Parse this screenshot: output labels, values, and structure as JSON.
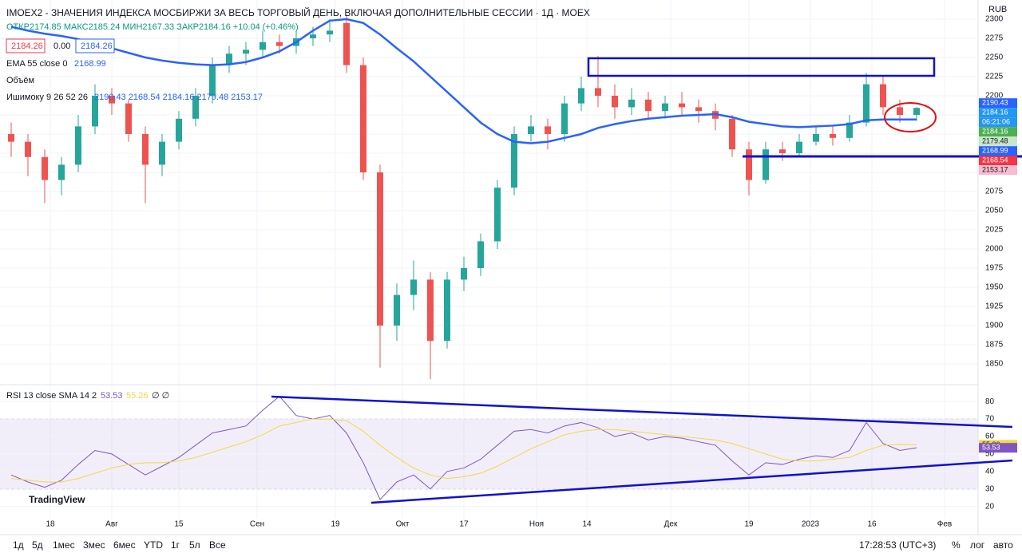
{
  "header": {
    "title": "IMOEX2 - ЗНАЧЕНИЯ ИНДЕКСА МОСБИРЖИ ЗА ВЕСЬ ТОРГОВЫЙ ДЕНЬ, ВКЛЮЧАЯ ДОПОЛНИТЕЛЬНЫЕ СЕССИИ · 1Д · MOEX",
    "ohlc": "ОТКР2174.85 МАКС2185.24 МИН2167.33 ЗАКР2184.16 +10.04 (+0.46%)",
    "bid": "2184.26",
    "spread": "0.00",
    "ask": "2184.26",
    "ema_legend": "EMA 55 close 0",
    "ema_value": "2168.99",
    "volume_legend": "Объём",
    "ichimoku_legend": "Ишимоку 9 26 52 26",
    "ichimoku_values": "2190.43 2168.54 2184.16 2179.48 2153.17",
    "currency": "RUB",
    "logo": "TradingView"
  },
  "toolbar": {
    "ranges": [
      "1д",
      "5д",
      "1мес",
      "3мес",
      "6мес",
      "YTD",
      "1г",
      "5л",
      "Все"
    ],
    "clock": "17:28:53 (UTC+3)",
    "percent": "%",
    "log": "лог",
    "auto": "авто"
  },
  "chart_data": [
    {
      "type": "candlestick",
      "up_color": "#26a69a",
      "down_color": "#ef5350",
      "x": [
        2,
        5,
        8,
        11,
        14,
        17,
        20,
        23,
        26,
        29,
        32,
        35,
        38,
        41,
        44,
        47,
        50,
        53,
        56,
        59,
        62,
        65,
        68,
        71,
        74,
        77,
        80,
        83,
        86,
        89,
        92,
        95,
        98,
        101,
        104,
        107,
        110,
        113,
        116,
        119,
        122,
        125,
        128,
        131,
        134,
        137,
        140,
        143,
        146,
        149,
        152,
        155,
        158,
        161,
        164
      ],
      "open": [
        2150,
        2140,
        2120,
        2090,
        2110,
        2160,
        2200,
        2190,
        2150,
        2110,
        2140,
        2170,
        2200,
        2240,
        2255,
        2260,
        2270,
        2265,
        2275,
        2280,
        2295,
        2240,
        2100,
        1900,
        1940,
        1960,
        1880,
        1960,
        1975,
        2010,
        2080,
        2150,
        2160,
        2150,
        2190,
        2210,
        2200,
        2185,
        2195,
        2180,
        2190,
        2185,
        2180,
        2170,
        2130,
        2090,
        2130,
        2125,
        2140,
        2150,
        2145,
        2165,
        2215,
        2185,
        2175
      ],
      "high": [
        2165,
        2150,
        2130,
        2120,
        2175,
        2215,
        2210,
        2195,
        2160,
        2150,
        2180,
        2210,
        2250,
        2265,
        2270,
        2285,
        2280,
        2285,
        2290,
        2300,
        2305,
        2250,
        2110,
        1955,
        1985,
        1970,
        1970,
        1990,
        2020,
        2090,
        2160,
        2175,
        2170,
        2200,
        2225,
        2252,
        2215,
        2210,
        2205,
        2200,
        2205,
        2195,
        2190,
        2175,
        2140,
        2140,
        2140,
        2150,
        2160,
        2160,
        2175,
        2230,
        2225,
        2195,
        2185.24
      ],
      "low": [
        2120,
        2095,
        2060,
        2070,
        2100,
        2150,
        2175,
        2140,
        2060,
        2095,
        2130,
        2160,
        2190,
        2230,
        2240,
        2250,
        2255,
        2255,
        2265,
        2270,
        2230,
        2090,
        1845,
        1880,
        1920,
        1830,
        1870,
        1945,
        1965,
        2000,
        2070,
        2140,
        2130,
        2140,
        2180,
        2185,
        2170,
        2175,
        2170,
        2170,
        2175,
        2165,
        2155,
        2120,
        2070,
        2085,
        2115,
        2120,
        2135,
        2135,
        2140,
        2160,
        2175,
        2165,
        2167.33
      ],
      "close": [
        2140,
        2120,
        2090,
        2110,
        2160,
        2200,
        2190,
        2150,
        2110,
        2140,
        2170,
        2200,
        2240,
        2255,
        2260,
        2270,
        2265,
        2275,
        2280,
        2285,
        2240,
        2100,
        1900,
        1940,
        1960,
        1880,
        1960,
        1975,
        2010,
        2080,
        2150,
        2160,
        2150,
        2190,
        2210,
        2200,
        2185,
        2195,
        2180,
        2190,
        2185,
        2180,
        2170,
        2130,
        2090,
        2130,
        2125,
        2140,
        2150,
        2145,
        2165,
        2215,
        2185,
        2175,
        2184.16
      ],
      "series": [
        {
          "name": "EMA 55",
          "color": "#2962ff",
          "values": [
            2290,
            2285,
            2281,
            2278,
            2274,
            2268,
            2262,
            2256,
            2250,
            2246,
            2243,
            2241,
            2240,
            2241,
            2244,
            2250,
            2258,
            2270,
            2285,
            2298,
            2300,
            2295,
            2280,
            2262,
            2245,
            2225,
            2205,
            2185,
            2165,
            2150,
            2140,
            2138,
            2140,
            2145,
            2150,
            2158,
            2163,
            2167,
            2170,
            2172,
            2174,
            2175,
            2176,
            2172,
            2166,
            2163,
            2160,
            2159,
            2160,
            2161,
            2163,
            2168,
            2169,
            2169,
            2168.99
          ]
        }
      ],
      "xlim": [
        0,
        175
      ],
      "xticks": [
        {
          "value": 9,
          "label": "18"
        },
        {
          "value": 20,
          "label": "Авг"
        },
        {
          "value": 32,
          "label": "15"
        },
        {
          "value": 46,
          "label": "Сен"
        },
        {
          "value": 60,
          "label": "19"
        },
        {
          "value": 72,
          "label": "Окт"
        },
        {
          "value": 83,
          "label": "17"
        },
        {
          "value": 96,
          "label": "Ноя"
        },
        {
          "value": 105,
          "label": "14"
        },
        {
          "value": 120,
          "label": "Дек"
        },
        {
          "value": 134,
          "label": "19"
        },
        {
          "value": 145,
          "label": "2023"
        },
        {
          "value": 156,
          "label": "16"
        },
        {
          "value": 169,
          "label": "Фев"
        }
      ],
      "ylim": [
        1825,
        2325
      ],
      "yticks": [
        1850,
        1875,
        1900,
        1925,
        1950,
        1975,
        2000,
        2025,
        2050,
        2075,
        2100,
        2125,
        2150,
        2175,
        2200,
        2225,
        2250,
        2275,
        2300
      ],
      "price_badges": [
        {
          "value": 2190.43,
          "color": "#2962ff"
        },
        {
          "value": 2184.16,
          "color": "#2196f3"
        },
        {
          "value": 2184.16,
          "color": "#4caf50"
        },
        {
          "value": 2179.48,
          "color": "#c8e6c9"
        },
        {
          "value": 2168.99,
          "color": "#2962ff"
        },
        {
          "value": 2168.54,
          "color": "#f23645"
        },
        {
          "value": 2153.17,
          "color": "#f8bbd0"
        }
      ],
      "countdown": "06:21:06"
    },
    {
      "type": "line",
      "title": "RSI 13 close SMA 14 2",
      "nulls": "∅ ∅",
      "x": [
        2,
        5,
        8,
        11,
        14,
        17,
        20,
        23,
        26,
        29,
        32,
        35,
        38,
        41,
        44,
        47,
        50,
        53,
        56,
        59,
        62,
        65,
        68,
        71,
        74,
        77,
        80,
        83,
        86,
        89,
        92,
        95,
        98,
        101,
        104,
        107,
        110,
        113,
        116,
        119,
        122,
        125,
        128,
        131,
        134,
        137,
        140,
        143,
        146,
        149,
        152,
        155,
        158,
        161,
        164
      ],
      "series": [
        {
          "name": "RSI",
          "color": "#7e57c2",
          "values": [
            38,
            34,
            31,
            35,
            44,
            52,
            50,
            44,
            38,
            43,
            48,
            55,
            62,
            64,
            66,
            75,
            83,
            72,
            70,
            72,
            62,
            45,
            24,
            34,
            38,
            30,
            40,
            42,
            47,
            55,
            63,
            64,
            62,
            66,
            68,
            65,
            60,
            62,
            58,
            60,
            59,
            57,
            55,
            46,
            38,
            45,
            44,
            47,
            49,
            48,
            52,
            68,
            56,
            52,
            53.53
          ]
        },
        {
          "name": "SMA",
          "color": "#f5d742",
          "values": [
            36,
            35,
            34,
            34,
            36,
            39,
            42,
            44,
            45,
            45,
            46,
            48,
            51,
            54,
            57,
            61,
            66,
            68,
            70,
            70,
            69,
            63,
            55,
            48,
            42,
            38,
            36,
            37,
            39,
            43,
            48,
            53,
            57,
            61,
            63,
            64,
            64,
            63,
            62,
            61,
            60,
            59,
            58,
            56,
            53,
            50,
            47,
            46,
            46,
            47,
            48,
            52,
            55,
            55.5,
            55.26
          ]
        }
      ],
      "xlim": [
        0,
        175
      ],
      "ylim": [
        13,
        86
      ],
      "yticks": [
        20,
        30,
        40,
        50,
        60,
        70,
        80
      ],
      "bands": [
        30,
        70
      ],
      "band_color": "#7e57c2"
    }
  ]
}
